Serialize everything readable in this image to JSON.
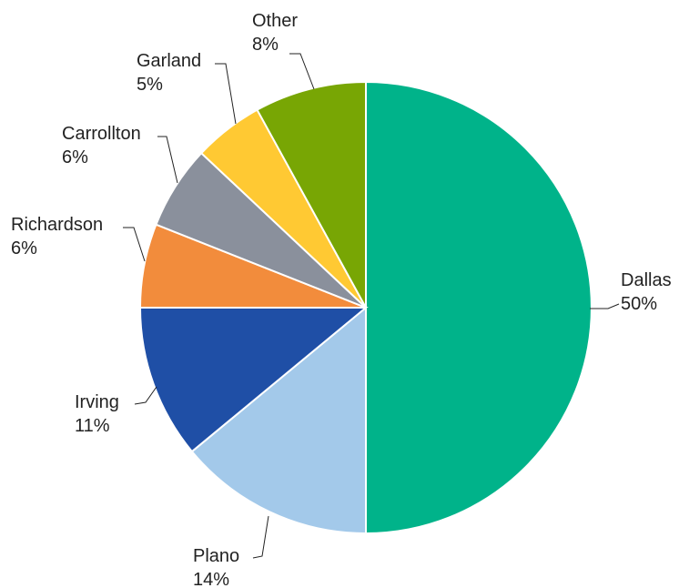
{
  "chart_data": {
    "type": "pie",
    "title": "",
    "start_angle_deg": 0,
    "direction": "clockwise",
    "slices": [
      {
        "name": "Dallas",
        "value": 50,
        "label": "50%",
        "color": "#00B38A"
      },
      {
        "name": "Plano",
        "value": 14,
        "label": "14%",
        "color": "#A3C9EA"
      },
      {
        "name": "Irving",
        "value": 11,
        "label": "11%",
        "color": "#1F4FA6"
      },
      {
        "name": "Richardson",
        "value": 6,
        "label": "6%",
        "color": "#F28C3C"
      },
      {
        "name": "Carrollton",
        "value": 6,
        "label": "6%",
        "color": "#8A909C"
      },
      {
        "name": "Garland",
        "value": 5,
        "label": "5%",
        "color": "#FFC933"
      },
      {
        "name": "Other",
        "value": 8,
        "label": "8%",
        "color": "#78A604"
      }
    ]
  }
}
